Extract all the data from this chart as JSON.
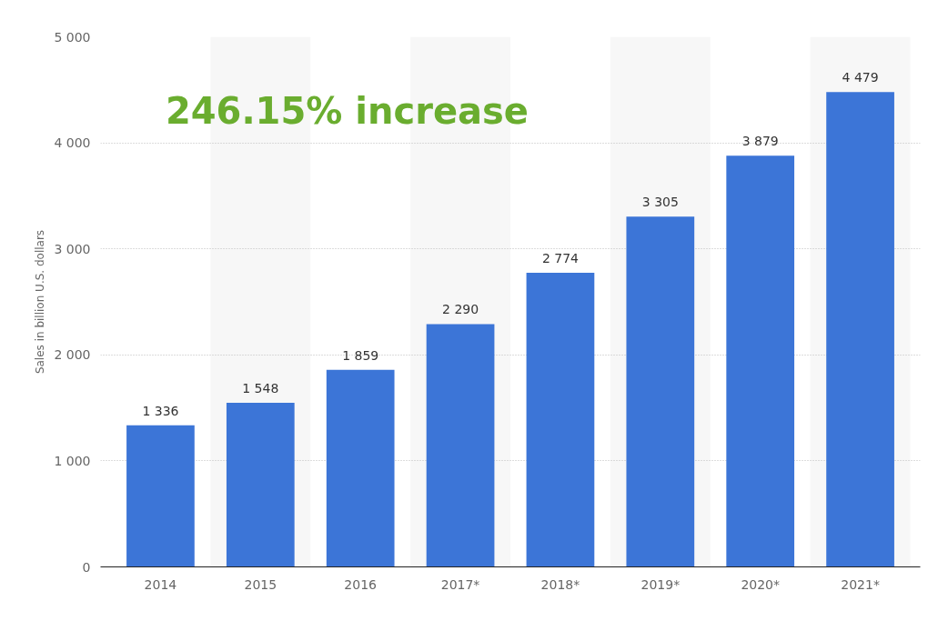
{
  "chart_data": {
    "type": "bar",
    "ylabel": "Sales in billion U.S. dollars",
    "categories": [
      "2014",
      "2015",
      "2016",
      "2017*",
      "2018*",
      "2019*",
      "2020*",
      "2021*"
    ],
    "values": [
      1336,
      1548,
      1859,
      2290,
      2774,
      3305,
      3879,
      4479
    ],
    "color": "#3c75d7",
    "ylim": [
      0,
      5000
    ],
    "yticks": [
      {
        "value": 0,
        "label": "0"
      },
      {
        "value": 1000,
        "label": "1 000"
      },
      {
        "value": 2000,
        "label": "2 000"
      },
      {
        "value": 3000,
        "label": "3 000"
      },
      {
        "value": 4000,
        "label": "4 000"
      },
      {
        "value": 5000,
        "label": "5 000"
      }
    ],
    "grid": "y",
    "data_labels": true,
    "annotations": [
      "246.15% increase"
    ]
  }
}
